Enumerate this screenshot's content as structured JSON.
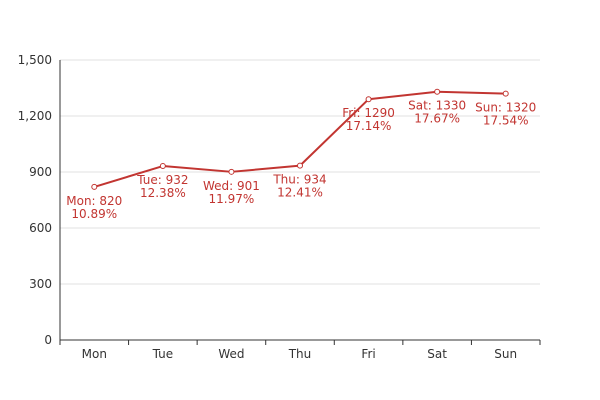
{
  "chart_data": {
    "type": "line",
    "categories": [
      "Mon",
      "Tue",
      "Wed",
      "Thu",
      "Fri",
      "Sat",
      "Sun"
    ],
    "series": [
      {
        "values": [
          820,
          932,
          901,
          934,
          1290,
          1330,
          1320
        ],
        "percent_labels": [
          "10.89%",
          "12.38%",
          "11.97%",
          "12.41%",
          "17.14%",
          "17.67%",
          "17.54%"
        ]
      }
    ],
    "data_labels": [
      "Mon: 820",
      "Tue: 932",
      "Wed: 901",
      "Thu: 934",
      "Fri: 1290",
      "Sat: 1330",
      "Sun: 1320"
    ],
    "y_ticks": [
      "0",
      "300",
      "600",
      "900",
      "1,200",
      "1,500"
    ],
    "ylim": [
      0,
      1500
    ],
    "title": "",
    "xlabel": "",
    "ylabel": "",
    "grid": true,
    "legend": "none",
    "colors": {
      "series": "#c23531",
      "grid": "#e0e0e0",
      "axis": "#333333",
      "marker_fill": "#ffffff"
    }
  }
}
